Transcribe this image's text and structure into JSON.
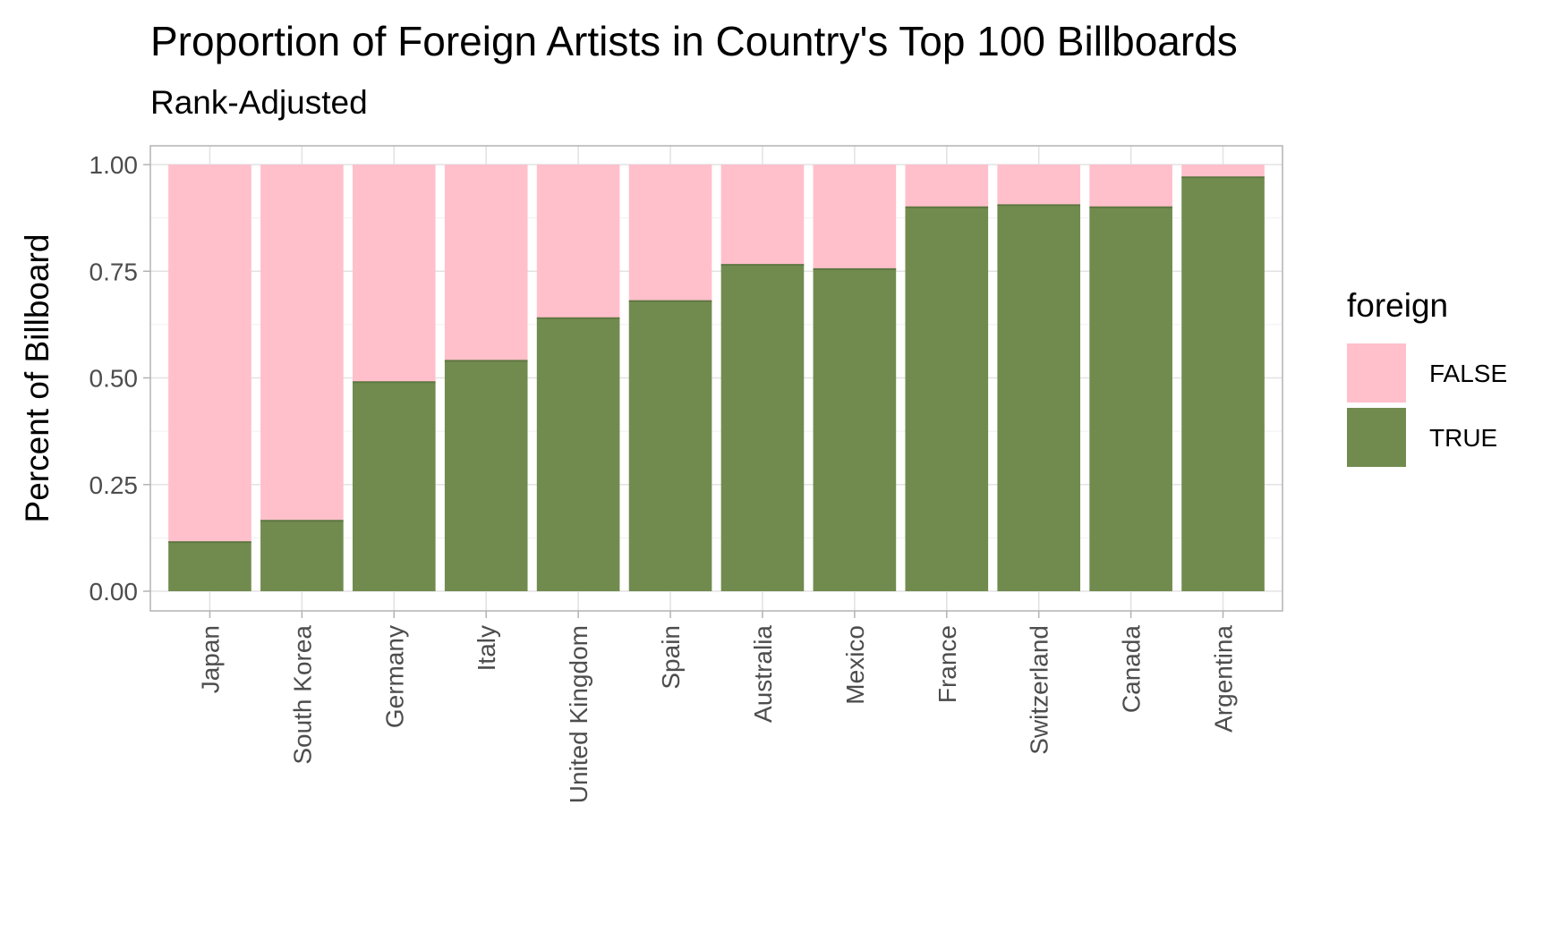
{
  "chart_data": {
    "type": "bar",
    "stacked": true,
    "title": "Proportion of Foreign Artists in Country's Top 100 Billboards",
    "subtitle": "Rank-Adjusted",
    "xlabel": "",
    "ylabel": "Percent of Billboard",
    "ylim": [
      0,
      1
    ],
    "yticks": [
      "0.00",
      "0.25",
      "0.50",
      "0.75",
      "1.00"
    ],
    "grid": true,
    "legend": {
      "title": "foreign",
      "position": "right",
      "entries": [
        "FALSE",
        "TRUE"
      ]
    },
    "categories": [
      "Japan",
      "South Korea",
      "Germany",
      "Italy",
      "United Kingdom",
      "Spain",
      "Australia",
      "Mexico",
      "France",
      "Switzerland",
      "Canada",
      "Argentina"
    ],
    "series": [
      {
        "name": "TRUE",
        "color": "#718B4F",
        "values": [
          0.115,
          0.165,
          0.49,
          0.54,
          0.64,
          0.68,
          0.765,
          0.755,
          0.9,
          0.905,
          0.9,
          0.97
        ]
      },
      {
        "name": "FALSE",
        "color": "#FFC0CB",
        "values": [
          0.885,
          0.835,
          0.51,
          0.46,
          0.36,
          0.32,
          0.235,
          0.245,
          0.1,
          0.095,
          0.1,
          0.03
        ]
      }
    ]
  }
}
